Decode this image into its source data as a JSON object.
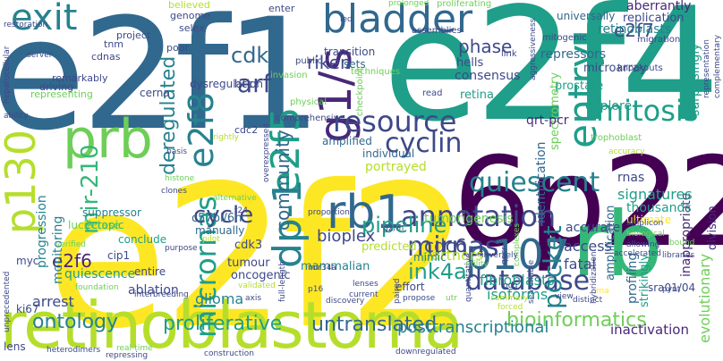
{
  "background": "#ffffff",
  "palette": {
    "yellow": "#fde725",
    "lime": "#b5de2b",
    "green": "#6ece58",
    "teal": "#35b779",
    "seafoam": "#1f9e89",
    "cyan": "#26828e",
    "blue": "#31688e",
    "indigo": "#3e4989",
    "purple": "#482878",
    "violet": "#440154"
  },
  "words": [
    {
      "text": "e2f2",
      "color": "#fde725"
    },
    {
      "text": "e2f1",
      "color": "#31688e"
    },
    {
      "text": "e2f4",
      "color": "#1f9e89"
    },
    {
      "text": "6p22",
      "color": "#440154"
    },
    {
      "text": "retinoblastoma",
      "color": "#b5de2b"
    },
    {
      "text": "rb",
      "color": "#35b779"
    },
    {
      "text": "prb",
      "color": "#6ece58"
    },
    {
      "text": "bladder",
      "color": "#31688e"
    },
    {
      "text": "exit",
      "color": "#26828e"
    },
    {
      "text": "p130",
      "color": "#b5de2b"
    },
    {
      "text": "e2f8",
      "color": "#26828e"
    },
    {
      "text": "g1/s",
      "color": "#482878"
    },
    {
      "text": "e2f5",
      "color": "#1f9e89"
    },
    {
      "text": "dp-1",
      "color": "#26828e"
    },
    {
      "text": "rb1",
      "color": "#31688e"
    },
    {
      "text": "p107",
      "color": "#31688e"
    },
    {
      "text": "entry",
      "color": "#1f9e89"
    },
    {
      "text": "mitosis",
      "color": "#1f9e89"
    },
    {
      "text": "cyclin",
      "color": "#3e4989"
    },
    {
      "text": "resource",
      "color": "#3e4989"
    },
    {
      "text": "annotation",
      "color": "#3e4989"
    },
    {
      "text": "database",
      "color": "#3e4989"
    },
    {
      "text": "mirnas",
      "color": "#3e4989"
    },
    {
      "text": "micrornas",
      "color": "#1f9e89"
    },
    {
      "text": "mir-210",
      "color": "#35b779"
    },
    {
      "text": "pocket",
      "color": "#26828e"
    },
    {
      "text": "quiescent",
      "color": "#26828e"
    },
    {
      "text": "pipeline",
      "color": "#1f9e89"
    },
    {
      "text": "cycle",
      "color": "#3e4989"
    },
    {
      "text": "cdk2",
      "color": "#31688e"
    },
    {
      "text": "arf",
      "color": "#3e4989"
    },
    {
      "text": "riken",
      "color": "#3e4989"
    },
    {
      "text": "phase",
      "color": "#3e4989"
    },
    {
      "text": "e2f7",
      "color": "#3e4989"
    },
    {
      "text": "deregulated",
      "color": "#26828e"
    },
    {
      "text": "community",
      "color": "#31688e"
    },
    {
      "text": "ink4a",
      "color": "#1f9e89"
    },
    {
      "text": "cdc6",
      "color": "#3e4989"
    },
    {
      "text": "e2f6",
      "color": "#482878"
    },
    {
      "text": "ontology",
      "color": "#26828e"
    },
    {
      "text": "proliferative",
      "color": "#1f9e89"
    },
    {
      "text": "untranslated",
      "color": "#31688e"
    },
    {
      "text": "bioinformatics",
      "color": "#6ece58"
    },
    {
      "text": "posttranscriptional",
      "color": "#26828e"
    },
    {
      "text": "bioplex",
      "color": "#3e4989"
    },
    {
      "text": "glioma",
      "color": "#26828e"
    },
    {
      "text": "arrest",
      "color": "#3e4989"
    },
    {
      "text": "ablation",
      "color": "#3e4989"
    },
    {
      "text": "quiescence",
      "color": "#1f9e89"
    },
    {
      "text": "progression",
      "color": "#26828e"
    },
    {
      "text": "monitoring",
      "color": "#26828e"
    },
    {
      "text": "inactivation",
      "color": "#482878"
    },
    {
      "text": "evolutionary",
      "color": "#6ece58"
    },
    {
      "text": "fibroblasts",
      "color": "#1f9e89"
    },
    {
      "text": "tumorigenesis",
      "color": "#6ece58"
    },
    {
      "text": "partners",
      "color": "#b5de2b"
    },
    {
      "text": "isoforms",
      "color": "#1f9e89"
    },
    {
      "text": "access",
      "color": "#3e4989"
    },
    {
      "text": "fatal",
      "color": "#3e4989"
    },
    {
      "text": "inappropriate",
      "color": "#482878"
    },
    {
      "text": "accurate",
      "color": "#3e4989"
    },
    {
      "text": "profiling",
      "color": "#31688e"
    },
    {
      "text": "strikingly",
      "color": "#1f9e89"
    },
    {
      "text": "amplification",
      "color": "#31688e"
    },
    {
      "text": "signatures",
      "color": "#1f9e89"
    },
    {
      "text": "thousands",
      "color": "#1f9e89"
    },
    {
      "text": "rnas",
      "color": "#3e4989"
    },
    {
      "text": "ultimate",
      "color": "#fde725"
    },
    {
      "text": "division",
      "color": "#482878"
    },
    {
      "text": "sra01/04",
      "color": "#3e4989"
    },
    {
      "text": "identification",
      "color": "#31688e"
    },
    {
      "text": "spectrometry",
      "color": "#6ece58"
    },
    {
      "text": "consensus",
      "color": "#3e4989"
    },
    {
      "text": "hells",
      "color": "#3e4989"
    },
    {
      "text": "retina",
      "color": "#1f9e89"
    },
    {
      "text": "repressors",
      "color": "#31688e"
    },
    {
      "text": "prostate",
      "color": "#1f9e89"
    },
    {
      "text": "microarray",
      "color": "#3e4989"
    },
    {
      "text": "explore",
      "color": "#1f9e89"
    },
    {
      "text": "surprisingly",
      "color": "#1f9e89"
    },
    {
      "text": "retinoblasts",
      "color": "#26828e"
    },
    {
      "text": "replication",
      "color": "#3e4989"
    },
    {
      "text": "aberrantly",
      "color": "#482878"
    },
    {
      "text": "universally",
      "color": "#31688e"
    },
    {
      "text": "qrt-pcr",
      "color": "#482878"
    },
    {
      "text": "luciferase",
      "color": "#6ece58"
    },
    {
      "text": "suppressor",
      "color": "#26828e"
    },
    {
      "text": "ectopic",
      "color": "#35b779"
    },
    {
      "text": "manually",
      "color": "#31688e"
    },
    {
      "text": "c57bl/6n",
      "color": "#31688e"
    },
    {
      "text": "cdk3",
      "color": "#3e4989"
    },
    {
      "text": "tumour",
      "color": "#3e4989"
    },
    {
      "text": "oncogenic",
      "color": "#3e4989"
    },
    {
      "text": "mammalian",
      "color": "#26828e"
    },
    {
      "text": "conclude",
      "color": "#1f9e89"
    },
    {
      "text": "cip1",
      "color": "#3e4989"
    },
    {
      "text": "entire",
      "color": "#3e4989"
    },
    {
      "text": "myc",
      "color": "#3e4989"
    },
    {
      "text": "ki67",
      "color": "#3e4989"
    },
    {
      "text": "lens",
      "color": "#3e4989"
    },
    {
      "text": "hcc",
      "color": "#3e4989"
    },
    {
      "text": "cerna",
      "color": "#3e4989"
    },
    {
      "text": "dysregulation",
      "color": "#3e4989"
    },
    {
      "text": "amplified",
      "color": "#31688e"
    },
    {
      "text": "individual",
      "color": "#31688e"
    },
    {
      "text": "portrayed",
      "color": "#b5de2b"
    },
    {
      "text": "predicted",
      "color": "#b5de2b"
    },
    {
      "text": "mimic",
      "color": "#26828e"
    },
    {
      "text": "effort",
      "color": "#3e4989"
    },
    {
      "text": "transition",
      "color": "#3e4989"
    },
    {
      "text": "sets",
      "color": "#31688e"
    },
    {
      "text": "project",
      "color": "#3e4989"
    },
    {
      "text": "selex",
      "color": "#3e4989"
    },
    {
      "text": "tnm",
      "color": "#3e4989"
    },
    {
      "text": "cdnas",
      "color": "#3e4989"
    },
    {
      "text": "remarkably",
      "color": "#3e4989"
    },
    {
      "text": "driving",
      "color": "#3e4989"
    },
    {
      "text": "representing",
      "color": "#6ece58"
    },
    {
      "text": "genome",
      "color": "#3e4989"
    },
    {
      "text": "believed",
      "color": "#b5de2b"
    },
    {
      "text": "enter",
      "color": "#3e4989"
    },
    {
      "text": "poor",
      "color": "#3e4989"
    },
    {
      "text": "cdc2",
      "color": "#3e4989"
    },
    {
      "text": "comprehensive",
      "color": "#3e4989"
    },
    {
      "text": "physical",
      "color": "#6ece58"
    },
    {
      "text": "invasion",
      "color": "#6ece58"
    },
    {
      "text": "public",
      "color": "#3e4989"
    },
    {
      "text": "checkpoint",
      "color": "#6ece58"
    },
    {
      "text": "read",
      "color": "#3e4989"
    },
    {
      "text": "techniques",
      "color": "#6ece58"
    },
    {
      "text": "assemblies",
      "color": "#3e4989"
    },
    {
      "text": "link",
      "color": "#3e4989"
    },
    {
      "text": "mitogenic",
      "color": "#3e4989"
    },
    {
      "text": "proliferating",
      "color": "#6ece58"
    },
    {
      "text": "migration",
      "color": "#3e4989"
    },
    {
      "text": "knockouts",
      "color": "#3e4989"
    },
    {
      "text": "trophoblast",
      "color": "#6ece58"
    },
    {
      "text": "aggressiveness",
      "color": "#3e4989"
    },
    {
      "text": "representation",
      "color": "#3e4989"
    },
    {
      "text": "complementary",
      "color": "#3e4989"
    },
    {
      "text": "accuracy",
      "color": "#b5de2b"
    },
    {
      "text": "hepatocellular",
      "color": "#3e4989"
    },
    {
      "text": "restoration",
      "color": "#3e4989"
    },
    {
      "text": "server",
      "color": "#3e4989"
    },
    {
      "text": "ability",
      "color": "#3e4989"
    },
    {
      "text": "basis",
      "color": "#3e4989"
    },
    {
      "text": "histone",
      "color": "#6ece58"
    },
    {
      "text": "clones",
      "color": "#3e4989"
    },
    {
      "text": "alternative",
      "color": "#6ece58"
    },
    {
      "text": "t24",
      "color": "#3e4989"
    },
    {
      "text": "pilot",
      "color": "#b5de2b"
    },
    {
      "text": "purpose",
      "color": "#3e4989"
    },
    {
      "text": "verified",
      "color": "#6ece58"
    },
    {
      "text": "overexpressed",
      "color": "#3e4989"
    },
    {
      "text": "proportion",
      "color": "#3e4989"
    },
    {
      "text": "mir34a",
      "color": "#3e4989"
    },
    {
      "text": "lenses",
      "color": "#3e4989"
    },
    {
      "text": "current",
      "color": "#3e4989"
    },
    {
      "text": "p16",
      "color": "#3e4989"
    },
    {
      "text": "g2/m",
      "color": "#3e4989"
    },
    {
      "text": "validated",
      "color": "#b5de2b"
    },
    {
      "text": "discovery",
      "color": "#3e4989"
    },
    {
      "text": "foundation",
      "color": "#6ece58"
    },
    {
      "text": "interbreeding",
      "color": "#3e4989"
    },
    {
      "text": "axis",
      "color": "#3e4989"
    },
    {
      "text": "full-length",
      "color": "#3e4989"
    },
    {
      "text": "propose",
      "color": "#3e4989"
    },
    {
      "text": "paired",
      "color": "#3e4989"
    },
    {
      "text": "utr",
      "color": "#6ece58"
    },
    {
      "text": "quantitative",
      "color": "#3e4989"
    },
    {
      "text": "summary",
      "color": "#b5de2b"
    },
    {
      "text": "forced",
      "color": "#b5de2b"
    },
    {
      "text": "pcg",
      "color": "#3e4989"
    },
    {
      "text": "view",
      "color": "#3e4989"
    },
    {
      "text": "searchable",
      "color": "#3e4989"
    },
    {
      "text": "heterodimers",
      "color": "#3e4989"
    },
    {
      "text": "real-time",
      "color": "#6ece58"
    },
    {
      "text": "repressing",
      "color": "#3e4989"
    },
    {
      "text": "construction",
      "color": "#3e4989"
    },
    {
      "text": "downregulated",
      "color": "#3e4989"
    },
    {
      "text": "unprecedented",
      "color": "#3e4989"
    },
    {
      "text": "qpcr",
      "color": "#3e4989"
    },
    {
      "text": "complexes",
      "color": "#6ece58"
    },
    {
      "text": "inversely",
      "color": "#3e4989"
    },
    {
      "text": "utility",
      "color": "#6ece58"
    },
    {
      "text": "rna",
      "color": "#fde725"
    },
    {
      "text": "distinct",
      "color": "#3e4989"
    },
    {
      "text": "hybridization",
      "color": "#3e4989"
    },
    {
      "text": "accelerated",
      "color": "#3e4989"
    },
    {
      "text": "libraries",
      "color": "#3e4989"
    },
    {
      "text": "allowing",
      "color": "#3e4989"
    },
    {
      "text": "biological",
      "color": "#6ece58"
    },
    {
      "text": "bound",
      "color": "#6ece58"
    },
    {
      "text": "amplicon",
      "color": "#3e4989"
    },
    {
      "text": "pynt",
      "color": "#3e4989"
    },
    {
      "text": "led",
      "color": "#3e4989"
    },
    {
      "text": "rightly",
      "color": "#b5de2b"
    },
    {
      "text": "prolonged",
      "color": "#6ece58"
    }
  ]
}
